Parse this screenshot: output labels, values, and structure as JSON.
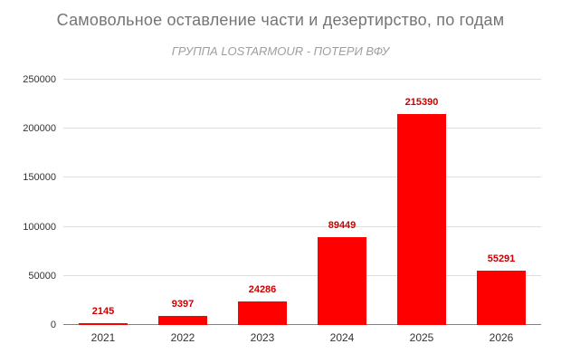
{
  "chart_data": {
    "type": "bar",
    "title": "Самовольное оставление части и дезертирство, по годам",
    "subtitle": "ГРУППА LOSTARMOUR - ПОТЕРИ ВФУ",
    "categories": [
      "2021",
      "2022",
      "2023",
      "2024",
      "2025",
      "2026"
    ],
    "values": [
      2145,
      9397,
      24286,
      89449,
      215390,
      55291
    ],
    "xlabel": "",
    "ylabel": "",
    "ylim": [
      0,
      250000
    ],
    "y_ticks": [
      0,
      50000,
      100000,
      150000,
      200000,
      250000
    ],
    "grid": true,
    "legend_position": "none",
    "colors": {
      "bar": "#ff0000",
      "data_label": "#cc0000",
      "title": "#757575",
      "subtitle": "#9e9e9e",
      "axis_text": "#333333",
      "gridline": "#dedede",
      "axis_line": "#848484",
      "background": "#ffffff"
    }
  }
}
